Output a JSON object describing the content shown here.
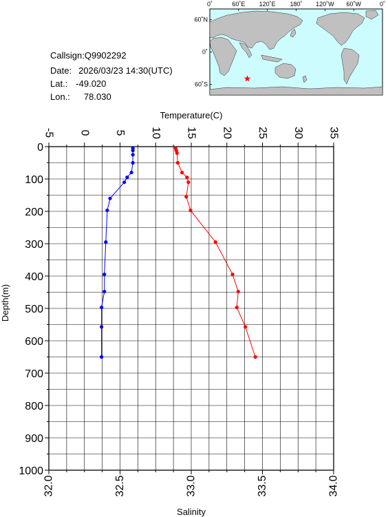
{
  "station": {
    "callsign_label": "Callsign:",
    "callsign": "Q9902292",
    "date_label": "Date:",
    "date": "2026/03/23 14:30(UTC)",
    "lat_label": "Lat.:",
    "lat": "-49.020",
    "lon_label": "Lon.:",
    "lon": "78.030"
  },
  "map": {
    "lon_ticks": [
      "0˚",
      "60˚E",
      "120˚E",
      "180˚",
      "120˚W",
      "60˚W",
      "0˚"
    ],
    "lat_ticks": [
      "60˚N",
      "0˚",
      "60˚S"
    ],
    "marker": {
      "lon": 78.03,
      "lat": -49.02
    },
    "colors": {
      "ocean": "#cdfcff",
      "land": "#c0c0c0",
      "marker": "#ff0000"
    }
  },
  "chart_data": {
    "type": "line",
    "title": "",
    "ylabel": "Depth(m)",
    "y_ticks": [
      0,
      100,
      200,
      300,
      400,
      500,
      600,
      700,
      800,
      900,
      1000
    ],
    "ylim": [
      1000,
      0
    ],
    "top_axis": {
      "label": "Temperature(C)",
      "range": [
        -5,
        35
      ],
      "ticks": [
        -5,
        0,
        5,
        10,
        15,
        20,
        25,
        30,
        35
      ]
    },
    "bottom_axis": {
      "label": "Salinity",
      "range": [
        32.0,
        34.0
      ],
      "ticks": [
        "32.0",
        "32.5",
        "33.0",
        "33.5",
        "34.0"
      ]
    },
    "grid": true,
    "series": [
      {
        "axis": "salinity",
        "color": "#0000ff",
        "points": [
          {
            "depth": 5,
            "value": 32.59
          },
          {
            "depth": 12,
            "value": 32.59
          },
          {
            "depth": 25,
            "value": 32.59
          },
          {
            "depth": 50,
            "value": 32.59
          },
          {
            "depth": 80,
            "value": 32.58
          },
          {
            "depth": 95,
            "value": 32.55
          },
          {
            "depth": 110,
            "value": 32.53
          },
          {
            "depth": 160,
            "value": 32.43
          },
          {
            "depth": 197,
            "value": 32.41
          },
          {
            "depth": 295,
            "value": 32.4
          },
          {
            "depth": 395,
            "value": 32.39
          },
          {
            "depth": 448,
            "value": 32.39
          },
          {
            "depth": 497,
            "value": 32.37
          },
          {
            "depth": 557,
            "value": 32.37
          },
          {
            "depth": 650,
            "value": 32.37
          }
        ]
      },
      {
        "axis": "temperature",
        "color": "#ff0000",
        "points": [
          {
            "depth": 5,
            "value": 12.8
          },
          {
            "depth": 12,
            "value": 12.9
          },
          {
            "depth": 20,
            "value": 13.0
          },
          {
            "depth": 50,
            "value": 13.1
          },
          {
            "depth": 80,
            "value": 13.7
          },
          {
            "depth": 95,
            "value": 14.4
          },
          {
            "depth": 110,
            "value": 14.6
          },
          {
            "depth": 155,
            "value": 14.3
          },
          {
            "depth": 197,
            "value": 14.9
          },
          {
            "depth": 295,
            "value": 18.4
          },
          {
            "depth": 395,
            "value": 20.8
          },
          {
            "depth": 448,
            "value": 21.6
          },
          {
            "depth": 497,
            "value": 21.4
          },
          {
            "depth": 557,
            "value": 22.6
          },
          {
            "depth": 650,
            "value": 24.0
          }
        ]
      }
    ]
  }
}
